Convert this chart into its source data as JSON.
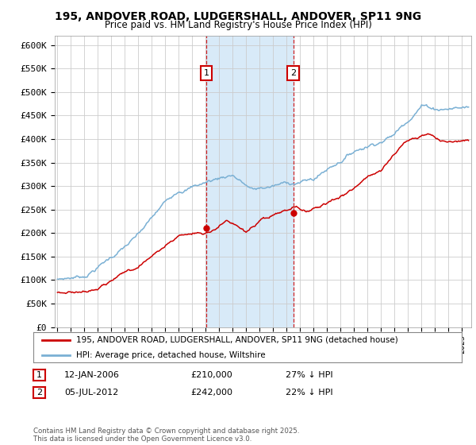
{
  "title": "195, ANDOVER ROAD, LUDGERSHALL, ANDOVER, SP11 9NG",
  "subtitle": "Price paid vs. HM Land Registry's House Price Index (HPI)",
  "ylim": [
    0,
    620000
  ],
  "yticks": [
    0,
    50000,
    100000,
    150000,
    200000,
    250000,
    300000,
    350000,
    400000,
    450000,
    500000,
    550000,
    600000
  ],
  "ytick_labels": [
    "£0",
    "£50K",
    "£100K",
    "£150K",
    "£200K",
    "£250K",
    "£300K",
    "£350K",
    "£400K",
    "£450K",
    "£500K",
    "£550K",
    "£600K"
  ],
  "legend1_label": "195, ANDOVER ROAD, LUDGERSHALL, ANDOVER, SP11 9NG (detached house)",
  "legend2_label": "HPI: Average price, detached house, Wiltshire",
  "red_line_color": "#cc0000",
  "blue_line_color": "#7ab0d4",
  "marker1_date": 2006.04,
  "marker2_date": 2012.51,
  "marker1_price": 210000,
  "marker2_price": 242000,
  "footnote": "Contains HM Land Registry data © Crown copyright and database right 2025.\nThis data is licensed under the Open Government Licence v3.0.",
  "background_color": "#ffffff",
  "grid_color": "#cccccc",
  "shade_color": "#d8eaf8"
}
